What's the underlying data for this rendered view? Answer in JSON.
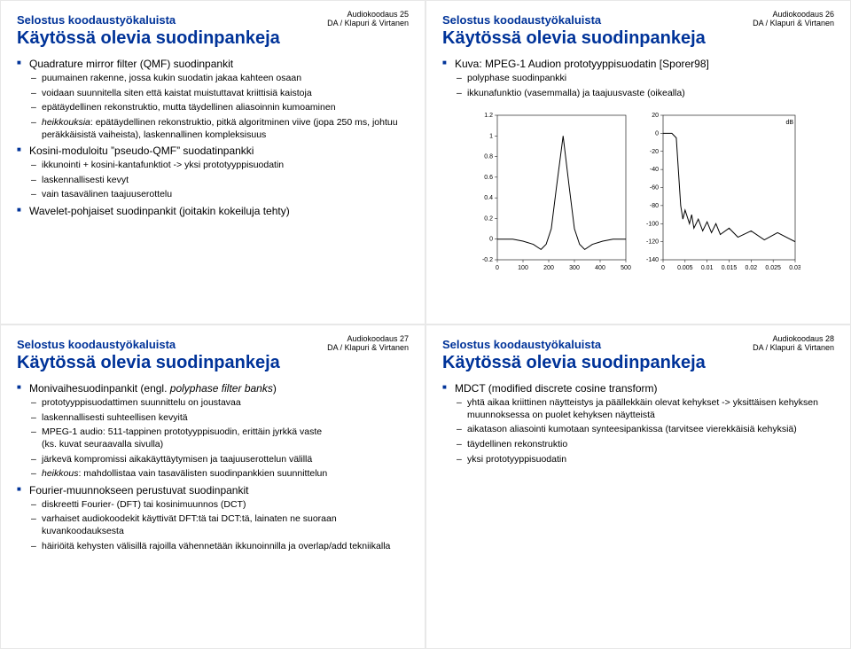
{
  "common": {
    "subtitle": "Selostus koodaustyökaluista",
    "title": "Käytössä olevia suodinpankeja",
    "footer_course_prefix": "Audiokoodaus ",
    "footer_author": "DA / Klapuri & Virtanen"
  },
  "slide25": {
    "num": "25",
    "b1": "Quadrature mirror filter (QMF) suodinpankit",
    "b1_1": "puumainen rakenne, jossa kukin suodatin jakaa kahteen osaan",
    "b1_2": "voidaan suunnitella siten että kaistat muistuttavat kriittisiä kaistoja",
    "b1_3": "epätäydellinen rekonstruktio, mutta täydellinen aliasoinnin kumoaminen",
    "b1_4_em": "heikkouksia",
    "b1_4_rest": ": epätäydellinen rekonstruktio, pitkä algoritminen viive (jopa 250 ms, johtuu peräkkäisistä vaiheista), laskennallinen kompleksisuus",
    "b2": "Kosini-moduloitu ”pseudo-QMF” suodatinpankki",
    "b2_1": "ikkunointi + kosini-kantafunktiot -> yksi prototyyppisuodatin",
    "b2_2": "laskennallisesti kevyt",
    "b2_3": "vain tasavälinen taajuuserottelu",
    "b3": "Wavelet-pohjaiset suodinpankit (joitakin kokeiluja tehty)"
  },
  "slide26": {
    "num": "26",
    "b1": "Kuva: MPEG-1 Audion prototyyppisuodatin [Sporer98]",
    "b1_1": "polyphase suodinpankki",
    "b1_2": "ikkunafunktio (vasemmalla) ja taajuusvaste (oikealla)",
    "chart_left": {
      "xlim": [
        0,
        500
      ],
      "ylim": [
        -0.2,
        1.2
      ],
      "xticks": [
        0,
        100,
        200,
        300,
        400,
        500
      ],
      "yticks": [
        -0.2,
        0,
        0.2,
        0.4,
        0.6,
        0.8,
        1.0,
        1.2
      ],
      "pts": [
        [
          0,
          0
        ],
        [
          60,
          0
        ],
        [
          100,
          -0.02
        ],
        [
          140,
          -0.05
        ],
        [
          170,
          -0.1
        ],
        [
          190,
          -0.05
        ],
        [
          210,
          0.1
        ],
        [
          230,
          0.5
        ],
        [
          256,
          1.0
        ],
        [
          280,
          0.5
        ],
        [
          300,
          0.1
        ],
        [
          320,
          -0.05
        ],
        [
          340,
          -0.1
        ],
        [
          370,
          -0.05
        ],
        [
          410,
          -0.02
        ],
        [
          450,
          0
        ],
        [
          500,
          0
        ]
      ]
    },
    "chart_right": {
      "xlim": [
        0,
        0.03
      ],
      "ylim": [
        -140,
        20
      ],
      "xticks": [
        0,
        0.005,
        0.01,
        0.015,
        0.02,
        0.025,
        0.03
      ],
      "yticks": [
        -140,
        -120,
        -100,
        -80,
        -60,
        -40,
        -20,
        0,
        20
      ],
      "ylabel": "dB",
      "pts": [
        [
          0,
          0
        ],
        [
          0.002,
          0
        ],
        [
          0.003,
          -5
        ],
        [
          0.004,
          -80
        ],
        [
          0.0045,
          -95
        ],
        [
          0.005,
          -85
        ],
        [
          0.006,
          -100
        ],
        [
          0.0065,
          -90
        ],
        [
          0.007,
          -105
        ],
        [
          0.008,
          -95
        ],
        [
          0.009,
          -108
        ],
        [
          0.01,
          -98
        ],
        [
          0.011,
          -110
        ],
        [
          0.012,
          -100
        ],
        [
          0.013,
          -112
        ],
        [
          0.015,
          -105
        ],
        [
          0.017,
          -115
        ],
        [
          0.02,
          -108
        ],
        [
          0.023,
          -118
        ],
        [
          0.026,
          -110
        ],
        [
          0.03,
          -120
        ]
      ]
    }
  },
  "slide27": {
    "num": "27",
    "b1_pre": "Monivaihesuodinpankit (engl. ",
    "b1_em": "polyphase filter banks",
    "b1_post": ")",
    "b1_1": "prototyyppisuodattimen suunnittelu on joustavaa",
    "b1_2": "laskennallisesti suhteellisen kevyitä",
    "b1_3": "MPEG-1 audio: 511-tappinen prototyyppisuodin, erittäin jyrkkä vaste\n(ks. kuvat seuraavalla sivulla)",
    "b1_4": "järkevä kompromissi aikakäyttäytymisen ja taajuuserottelun välillä",
    "b1_5_em": "heikkous",
    "b1_5_rest": ": mahdollistaa vain tasavälisten suodinpankkien suunnittelun",
    "b2": "Fourier-muunnokseen perustuvat suodinpankit",
    "b2_1": "diskreetti Fourier- (DFT) tai kosinimuunnos (DCT)",
    "b2_2": "varhaiset audiokoodekit käyttivät DFT:tä tai DCT:tä, lainaten ne suoraan kuvankoodauksesta",
    "b2_3": "häiriöitä kehysten välisillä rajoilla vähennetään ikkunoinnilla ja overlap/add tekniikalla"
  },
  "slide28": {
    "num": "28",
    "b1": "MDCT (modified discrete cosine transform)",
    "b1_1": "yhtä aikaa kriittinen näytteistys ja päällekkäin olevat kehykset -> yksittäisen kehyksen muunnoksessa on puolet kehyksen näytteistä",
    "b1_2": "aikatason aliasointi kumotaan synteesipankissa (tarvitsee vierekkäisiä kehyksiä)",
    "b1_3": "täydellinen rekonstruktio",
    "b1_4": "yksi prototyyppisuodatin"
  }
}
